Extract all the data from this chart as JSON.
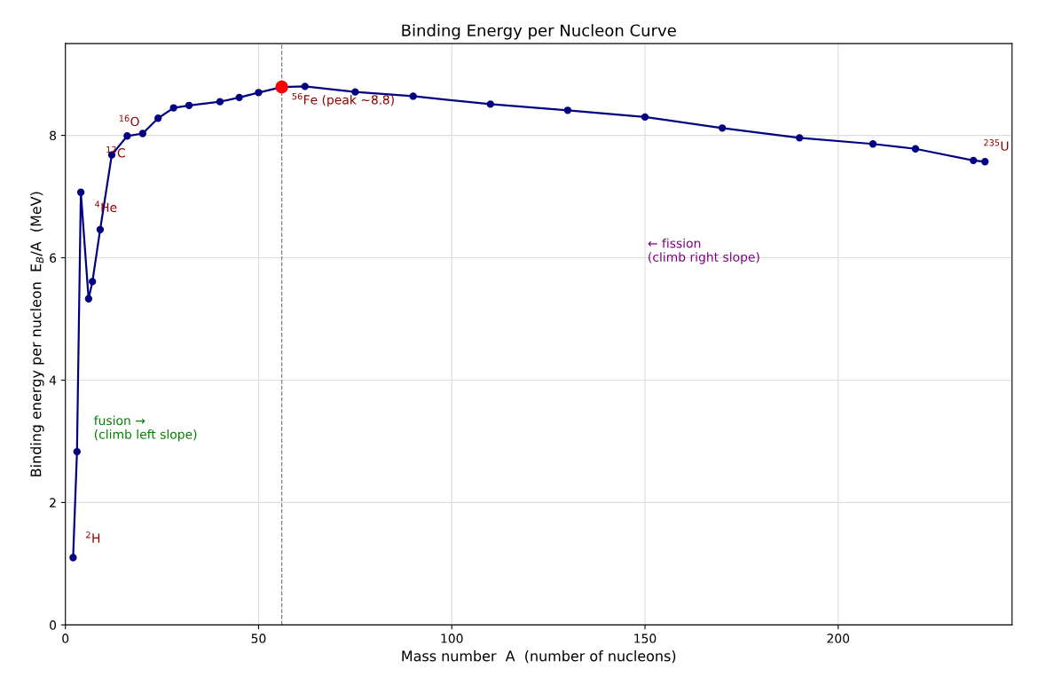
{
  "chart_data": {
    "type": "line",
    "title": "Binding Energy per Nucleon Curve",
    "xlabel": "Mass number  A  (number of nucleons)",
    "ylabel": "Binding energy per nucleon  E$_{B}$/A  (MeV)",
    "series": [
      {
        "color": "#000080",
        "marker": "circle",
        "x": [
          2,
          3,
          4,
          6,
          7,
          9,
          12,
          16,
          20,
          24,
          28,
          32,
          40,
          45,
          50,
          56,
          62,
          75,
          90,
          110,
          130,
          150,
          170,
          190,
          209,
          220,
          235,
          238
        ],
        "values": [
          1.1,
          2.83,
          7.07,
          5.33,
          5.61,
          6.46,
          7.68,
          7.99,
          8.03,
          8.28,
          8.45,
          8.49,
          8.55,
          8.62,
          8.7,
          8.79,
          8.8,
          8.71,
          8.64,
          8.51,
          8.41,
          8.3,
          8.12,
          7.96,
          7.86,
          7.78,
          7.59,
          7.57
        ]
      },
      {
        "type": "scatter",
        "color": "#ff0000",
        "marker": "circle",
        "x": [
          56
        ],
        "values": [
          8.79
        ]
      }
    ],
    "ref_lines": [
      {
        "axis": "x",
        "value": 56,
        "color": "#808080",
        "line_style": "dashed"
      }
    ],
    "annotations": [
      {
        "text": "$^{2}$H",
        "x": 2,
        "y": 1.1
      },
      {
        "text": "$^{4}$He",
        "x": 4,
        "y": 7.07
      },
      {
        "text": "$^{12}$C",
        "x": 12,
        "y": 7.68
      },
      {
        "text": "$^{16}$O",
        "x": 16,
        "y": 7.99
      },
      {
        "text": "$^{56}$Fe (peak ~8.8)",
        "x": 56,
        "y": 8.79
      },
      {
        "text": "$^{235}$U",
        "x": 235,
        "y": 7.59
      },
      "fusion →\n(climb left slope)",
      "← fission\n(climb right slope)"
    ],
    "xlim": [
      0,
      245
    ],
    "ylim": [
      0,
      9.5
    ],
    "xticks": [
      0,
      50,
      100,
      150,
      200
    ],
    "yticks": [
      0,
      2,
      4,
      6,
      8
    ],
    "grid": true
  }
}
